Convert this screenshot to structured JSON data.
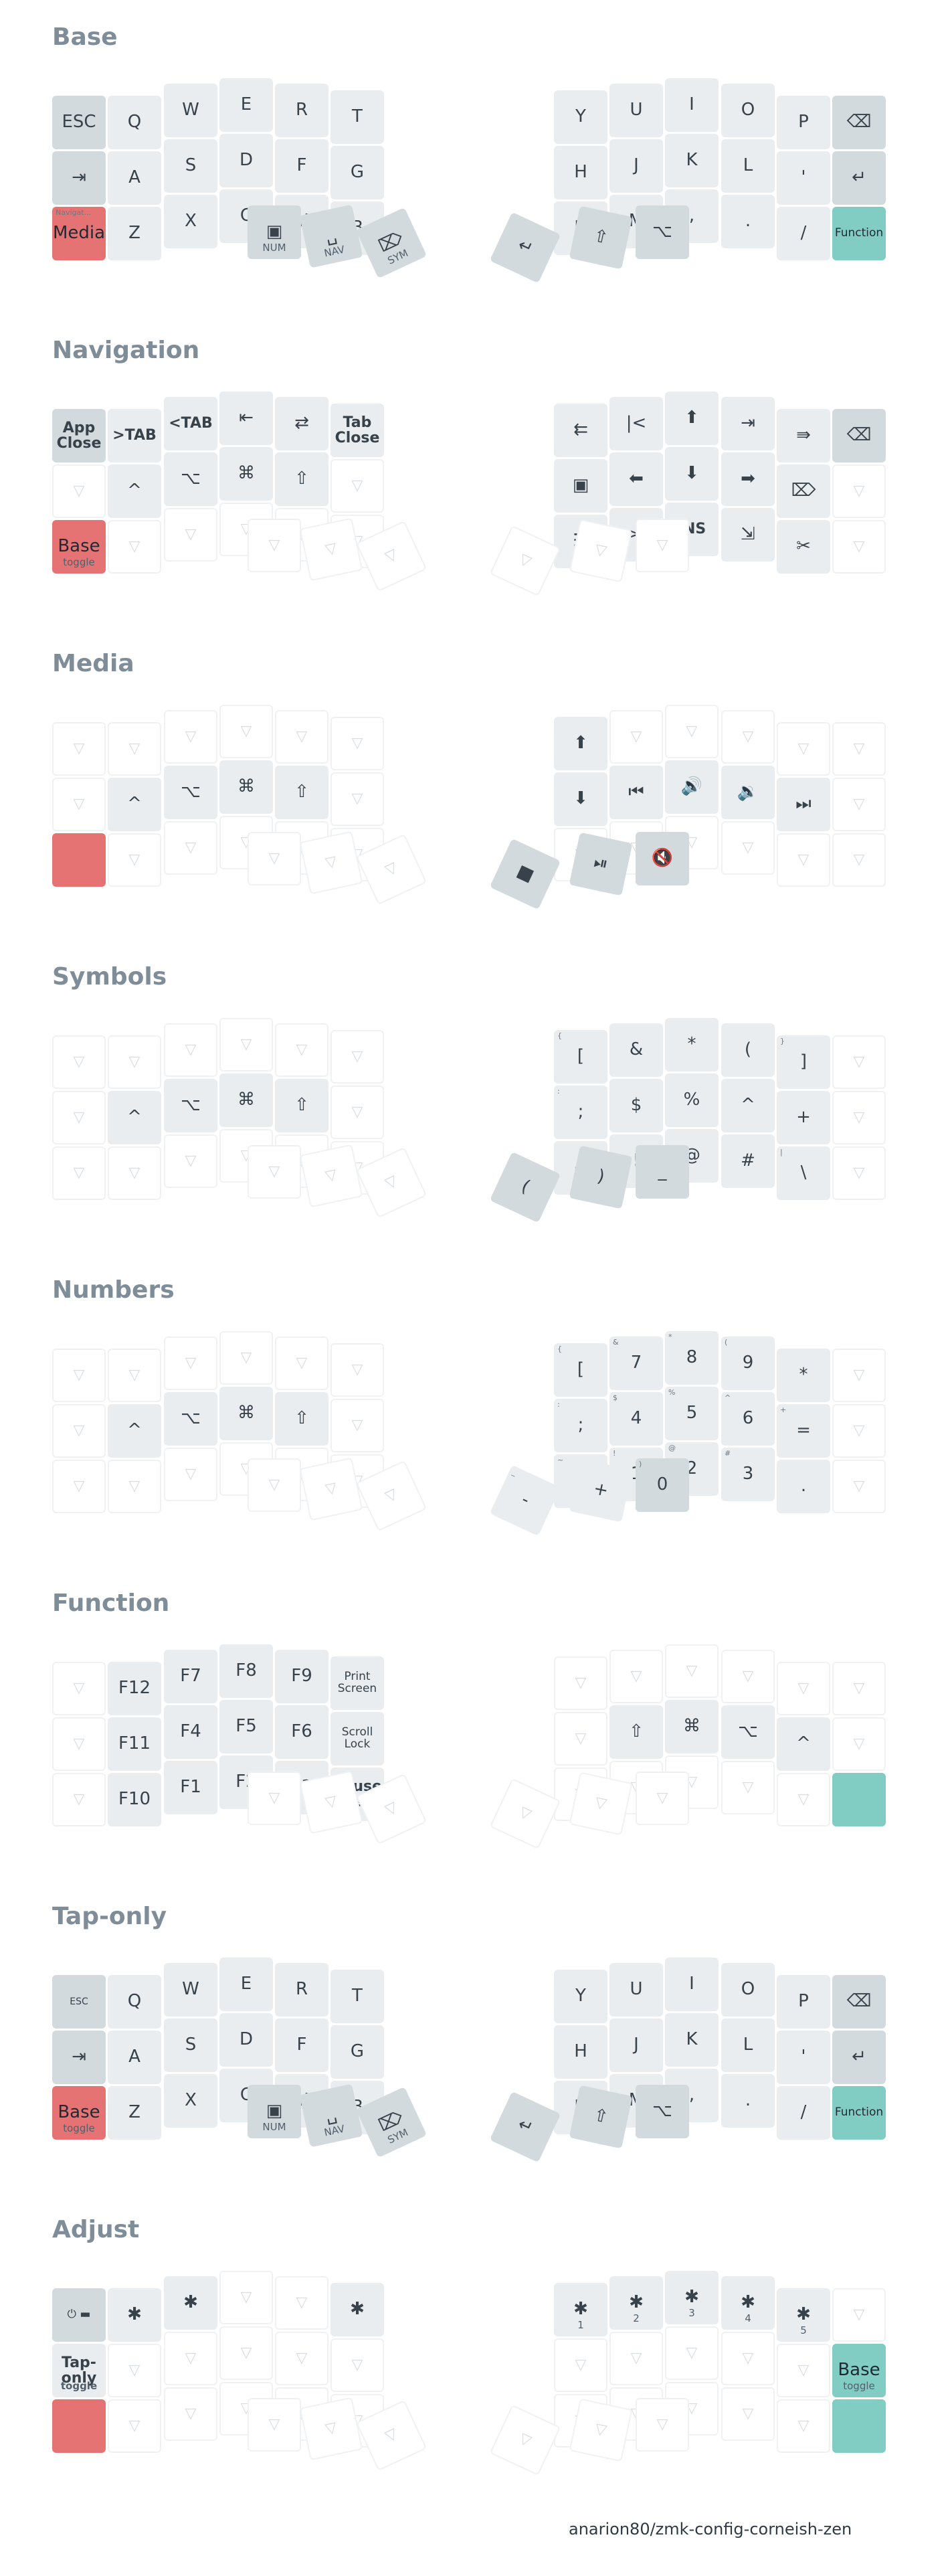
{
  "layers": [
    {
      "title": "Base",
      "keys": [
        {
          "l": "ESC",
          "t": "dark"
        },
        {
          "l": "Q"
        },
        {
          "l": "W"
        },
        {
          "l": "E"
        },
        {
          "l": "R"
        },
        {
          "l": "T"
        },
        {
          "l": "Y"
        },
        {
          "l": "U"
        },
        {
          "l": "I"
        },
        {
          "l": "O"
        },
        {
          "l": "P"
        },
        {
          "l": "⌫",
          "t": "dark"
        },
        {
          "l": "⇥",
          "t": "dark"
        },
        {
          "l": "A"
        },
        {
          "l": "S"
        },
        {
          "l": "D"
        },
        {
          "l": "F"
        },
        {
          "l": "G"
        },
        {
          "l": "H"
        },
        {
          "l": "J"
        },
        {
          "l": "K"
        },
        {
          "l": "L"
        },
        {
          "l": "'"
        },
        {
          "l": "↵",
          "t": "dark"
        },
        {
          "l": "Media",
          "t": "red",
          "h": "Navigat..."
        },
        {
          "l": "Z"
        },
        {
          "l": "X"
        },
        {
          "l": "C"
        },
        {
          "l": "V"
        },
        {
          "l": "B"
        },
        {
          "l": "N"
        },
        {
          "l": "M"
        },
        {
          "l": ","
        },
        {
          "l": "."
        },
        {
          "l": "/"
        },
        {
          "l": "Function",
          "t": "teal",
          "s": "small"
        },
        {
          "l": "▣",
          "t": "dark",
          "sub": "NUM"
        },
        {
          "l": "␣",
          "t": "dark",
          "sub": "NAV"
        },
        {
          "l": "⌦",
          "t": "dark",
          "sub": "SYM"
        },
        {
          "l": "↵",
          "t": "dark"
        },
        {
          "l": "⇧",
          "t": "dark"
        },
        {
          "l": "⌥",
          "t": "dark"
        }
      ]
    },
    {
      "title": "Navigation",
      "keys": [
        {
          "l": "App\nClose",
          "t": "dark",
          "s": "word"
        },
        {
          "l": ">TAB",
          "s": "word"
        },
        {
          "l": "<TAB",
          "s": "word"
        },
        {
          "l": "⇤"
        },
        {
          "l": "⇄"
        },
        {
          "l": "Tab\nClose",
          "s": "word"
        },
        {
          "l": "⇇"
        },
        {
          "l": "|<"
        },
        {
          "l": "⬆"
        },
        {
          "l": "⇥"
        },
        {
          "l": "⇛"
        },
        {
          "l": "⌫",
          "t": "dark"
        },
        {
          "l": "",
          "t": "trans"
        },
        {
          "l": "^"
        },
        {
          "l": "⌥"
        },
        {
          "l": "⌘"
        },
        {
          "l": "⇧"
        },
        {
          "l": "",
          "t": "trans"
        },
        {
          "l": "▣"
        },
        {
          "l": "⬅"
        },
        {
          "l": "⬇"
        },
        {
          "l": "➡"
        },
        {
          "l": "⌦"
        },
        {
          "l": "",
          "t": "trans"
        },
        {
          "l": "Base",
          "t": "red",
          "sub": "toggle"
        },
        {
          "l": "",
          "t": "trans"
        },
        {
          "l": "",
          "t": "trans"
        },
        {
          "l": "",
          "t": "trans"
        },
        {
          "l": "",
          "t": "trans"
        },
        {
          "l": "",
          "t": "trans"
        },
        {
          "l": "☰"
        },
        {
          "l": ">|"
        },
        {
          "l": "INS",
          "s": "word"
        },
        {
          "l": "⇲"
        },
        {
          "l": "✂"
        },
        {
          "l": "",
          "t": "trans"
        },
        {
          "l": "",
          "t": "trans"
        },
        {
          "l": "",
          "t": "trans"
        },
        {
          "l": "",
          "t": "trans"
        },
        {
          "l": "",
          "t": "trans"
        },
        {
          "l": "",
          "t": "trans"
        },
        {
          "l": "",
          "t": "trans"
        }
      ]
    },
    {
      "title": "Media",
      "keys": [
        {
          "l": "",
          "t": "trans"
        },
        {
          "l": "",
          "t": "trans"
        },
        {
          "l": "",
          "t": "trans"
        },
        {
          "l": "",
          "t": "trans"
        },
        {
          "l": "",
          "t": "trans"
        },
        {
          "l": "",
          "t": "trans"
        },
        {
          "l": "⬆"
        },
        {
          "l": "",
          "t": "trans"
        },
        {
          "l": "",
          "t": "trans"
        },
        {
          "l": "",
          "t": "trans"
        },
        {
          "l": "",
          "t": "trans"
        },
        {
          "l": "",
          "t": "trans"
        },
        {
          "l": "",
          "t": "trans"
        },
        {
          "l": "^"
        },
        {
          "l": "⌥"
        },
        {
          "l": "⌘"
        },
        {
          "l": "⇧"
        },
        {
          "l": "",
          "t": "trans"
        },
        {
          "l": "⬇"
        },
        {
          "l": "⏮"
        },
        {
          "l": "🔊"
        },
        {
          "l": "🔉"
        },
        {
          "l": "⏭"
        },
        {
          "l": "",
          "t": "trans"
        },
        {
          "l": "",
          "t": "red"
        },
        {
          "l": "",
          "t": "trans"
        },
        {
          "l": "",
          "t": "trans"
        },
        {
          "l": "",
          "t": "trans"
        },
        {
          "l": "",
          "t": "trans"
        },
        {
          "l": "",
          "t": "trans"
        },
        {
          "l": "",
          "t": "trans"
        },
        {
          "l": "",
          "t": "trans"
        },
        {
          "l": "",
          "t": "trans"
        },
        {
          "l": "",
          "t": "trans"
        },
        {
          "l": "",
          "t": "trans"
        },
        {
          "l": "",
          "t": "trans"
        },
        {
          "l": "",
          "t": "trans"
        },
        {
          "l": "",
          "t": "trans"
        },
        {
          "l": "",
          "t": "trans"
        },
        {
          "l": "■",
          "t": "dark"
        },
        {
          "l": "⏯",
          "t": "dark"
        },
        {
          "l": "🔇",
          "t": "dark"
        }
      ]
    },
    {
      "title": "Symbols",
      "keys": [
        {
          "l": "",
          "t": "trans"
        },
        {
          "l": "",
          "t": "trans"
        },
        {
          "l": "",
          "t": "trans"
        },
        {
          "l": "",
          "t": "trans"
        },
        {
          "l": "",
          "t": "trans"
        },
        {
          "l": "",
          "t": "trans"
        },
        {
          "l": "[",
          "h": "{"
        },
        {
          "l": "&"
        },
        {
          "l": "*"
        },
        {
          "l": "("
        },
        {
          "l": "]",
          "h": "}"
        },
        {
          "l": "",
          "t": "trans"
        },
        {
          "l": "",
          "t": "trans"
        },
        {
          "l": "^"
        },
        {
          "l": "⌥"
        },
        {
          "l": "⌘"
        },
        {
          "l": "⇧"
        },
        {
          "l": "",
          "t": "trans"
        },
        {
          "l": ";",
          "h": ":"
        },
        {
          "l": "$"
        },
        {
          "l": "%"
        },
        {
          "l": "^"
        },
        {
          "l": "+"
        },
        {
          "l": "",
          "t": "trans"
        },
        {
          "l": "",
          "t": "trans"
        },
        {
          "l": "",
          "t": "trans"
        },
        {
          "l": "",
          "t": "trans"
        },
        {
          "l": "",
          "t": "trans"
        },
        {
          "l": "",
          "t": "trans"
        },
        {
          "l": "",
          "t": "trans"
        },
        {
          "l": "~"
        },
        {
          "l": "!"
        },
        {
          "l": "@"
        },
        {
          "l": "#"
        },
        {
          "l": "\\",
          "h": "|"
        },
        {
          "l": "",
          "t": "trans"
        },
        {
          "l": "",
          "t": "trans"
        },
        {
          "l": "",
          "t": "trans"
        },
        {
          "l": "",
          "t": "trans"
        },
        {
          "l": "(",
          "t": "dark"
        },
        {
          "l": ")",
          "t": "dark"
        },
        {
          "l": "_",
          "t": "dark"
        }
      ]
    },
    {
      "title": "Numbers",
      "keys": [
        {
          "l": "",
          "t": "trans"
        },
        {
          "l": "",
          "t": "trans"
        },
        {
          "l": "",
          "t": "trans"
        },
        {
          "l": "",
          "t": "trans"
        },
        {
          "l": "",
          "t": "trans"
        },
        {
          "l": "",
          "t": "trans"
        },
        {
          "l": "[",
          "h": "{"
        },
        {
          "l": "7",
          "h": "&"
        },
        {
          "l": "8",
          "h": "*"
        },
        {
          "l": "9",
          "h": "("
        },
        {
          "l": "*"
        },
        {
          "l": "",
          "t": "trans"
        },
        {
          "l": "",
          "t": "trans"
        },
        {
          "l": "^"
        },
        {
          "l": "⌥"
        },
        {
          "l": "⌘"
        },
        {
          "l": "⇧"
        },
        {
          "l": "",
          "t": "trans"
        },
        {
          "l": ";",
          "h": ":"
        },
        {
          "l": "4",
          "h": "$"
        },
        {
          "l": "5",
          "h": "%"
        },
        {
          "l": "6",
          "h": "^"
        },
        {
          "l": "=",
          "h": "+"
        },
        {
          "l": "",
          "t": "trans"
        },
        {
          "l": "",
          "t": "trans"
        },
        {
          "l": "",
          "t": "trans"
        },
        {
          "l": "",
          "t": "trans"
        },
        {
          "l": "",
          "t": "trans"
        },
        {
          "l": "",
          "t": "trans"
        },
        {
          "l": "",
          "t": "trans"
        },
        {
          "l": "`",
          "h": "~"
        },
        {
          "l": "1",
          "h": "!"
        },
        {
          "l": "2",
          "h": "@"
        },
        {
          "l": "3",
          "h": "#"
        },
        {
          "l": "."
        },
        {
          "l": "",
          "t": "trans"
        },
        {
          "l": "",
          "t": "trans"
        },
        {
          "l": "",
          "t": "trans"
        },
        {
          "l": "",
          "t": "trans"
        },
        {
          "l": "-",
          "h": "_"
        },
        {
          "l": "+"
        },
        {
          "l": "0",
          "t": "dark",
          "h": ")"
        }
      ]
    },
    {
      "title": "Function",
      "keys": [
        {
          "l": "",
          "t": "trans"
        },
        {
          "l": "F12"
        },
        {
          "l": "F7"
        },
        {
          "l": "F8"
        },
        {
          "l": "F9"
        },
        {
          "l": "Print\nScreen",
          "s": "small"
        },
        {
          "l": "",
          "t": "trans"
        },
        {
          "l": "",
          "t": "trans"
        },
        {
          "l": "",
          "t": "trans"
        },
        {
          "l": "",
          "t": "trans"
        },
        {
          "l": "",
          "t": "trans"
        },
        {
          "l": "",
          "t": "trans"
        },
        {
          "l": "",
          "t": "trans"
        },
        {
          "l": "F11"
        },
        {
          "l": "F4"
        },
        {
          "l": "F5"
        },
        {
          "l": "F6"
        },
        {
          "l": "Scroll\nLock",
          "s": "small"
        },
        {
          "l": "",
          "t": "trans"
        },
        {
          "l": "⇧"
        },
        {
          "l": "⌘"
        },
        {
          "l": "⌥"
        },
        {
          "l": "^"
        },
        {
          "l": "",
          "t": "trans"
        },
        {
          "l": "",
          "t": "trans"
        },
        {
          "l": "F10"
        },
        {
          "l": "F1"
        },
        {
          "l": "F2"
        },
        {
          "l": "F3"
        },
        {
          "l": "Pause\nBreak",
          "s": "word"
        },
        {
          "l": "",
          "t": "trans"
        },
        {
          "l": "",
          "t": "trans"
        },
        {
          "l": "",
          "t": "trans"
        },
        {
          "l": "",
          "t": "trans"
        },
        {
          "l": "",
          "t": "trans"
        },
        {
          "l": "",
          "t": "teal"
        },
        {
          "l": "",
          "t": "trans"
        },
        {
          "l": "",
          "t": "trans"
        },
        {
          "l": "",
          "t": "trans"
        },
        {
          "l": "",
          "t": "trans"
        },
        {
          "l": "",
          "t": "trans"
        },
        {
          "l": "",
          "t": "trans"
        }
      ]
    },
    {
      "title": "Tap-only",
      "keys": [
        {
          "l": "ESC",
          "t": "dark",
          "s": "tiny"
        },
        {
          "l": "Q"
        },
        {
          "l": "W"
        },
        {
          "l": "E"
        },
        {
          "l": "R"
        },
        {
          "l": "T"
        },
        {
          "l": "Y"
        },
        {
          "l": "U"
        },
        {
          "l": "I"
        },
        {
          "l": "O"
        },
        {
          "l": "P"
        },
        {
          "l": "⌫",
          "t": "dark"
        },
        {
          "l": "⇥",
          "t": "dark"
        },
        {
          "l": "A"
        },
        {
          "l": "S"
        },
        {
          "l": "D"
        },
        {
          "l": "F"
        },
        {
          "l": "G"
        },
        {
          "l": "H"
        },
        {
          "l": "J"
        },
        {
          "l": "K"
        },
        {
          "l": "L"
        },
        {
          "l": "'"
        },
        {
          "l": "↵",
          "t": "dark"
        },
        {
          "l": "Base",
          "t": "red",
          "sub": "toggle"
        },
        {
          "l": "Z"
        },
        {
          "l": "X"
        },
        {
          "l": "C"
        },
        {
          "l": "V"
        },
        {
          "l": "B"
        },
        {
          "l": "N"
        },
        {
          "l": "M"
        },
        {
          "l": ","
        },
        {
          "l": "."
        },
        {
          "l": "/"
        },
        {
          "l": "Function",
          "t": "teal",
          "s": "small"
        },
        {
          "l": "▣",
          "t": "dark",
          "sub": "NUM"
        },
        {
          "l": "␣",
          "t": "dark",
          "sub": "NAV"
        },
        {
          "l": "⌦",
          "t": "dark",
          "sub": "SYM"
        },
        {
          "l": "↵",
          "t": "dark"
        },
        {
          "l": "⇧",
          "t": "dark"
        },
        {
          "l": "⌥",
          "t": "dark"
        }
      ]
    },
    {
      "title": "Adjust",
      "keys": [
        {
          "l": "⏻ ▬",
          "t": "dark",
          "s": "small"
        },
        {
          "l": "✱"
        },
        {
          "l": "✱"
        },
        {
          "l": "",
          "t": "trans"
        },
        {
          "l": "",
          "t": "trans"
        },
        {
          "l": "✱"
        },
        {
          "l": "✱",
          "sub": "1"
        },
        {
          "l": "✱",
          "sub": "2"
        },
        {
          "l": "✱",
          "sub": "3"
        },
        {
          "l": "✱",
          "sub": "4"
        },
        {
          "l": "✱",
          "sub": "5"
        },
        {
          "l": "",
          "t": "trans"
        },
        {
          "l": "Tap-\nonly",
          "s": "word",
          "sub": "toggle"
        },
        {
          "l": "",
          "t": "trans"
        },
        {
          "l": "",
          "t": "trans"
        },
        {
          "l": "",
          "t": "trans"
        },
        {
          "l": "",
          "t": "trans"
        },
        {
          "l": "",
          "t": "trans"
        },
        {
          "l": "",
          "t": "trans"
        },
        {
          "l": "",
          "t": "trans"
        },
        {
          "l": "",
          "t": "trans"
        },
        {
          "l": "",
          "t": "trans"
        },
        {
          "l": "",
          "t": "trans"
        },
        {
          "l": "Base",
          "t": "teal",
          "sub": "toggle"
        },
        {
          "l": "",
          "t": "red"
        },
        {
          "l": "",
          "t": "trans"
        },
        {
          "l": "",
          "t": "trans"
        },
        {
          "l": "",
          "t": "trans"
        },
        {
          "l": "",
          "t": "trans"
        },
        {
          "l": "",
          "t": "trans"
        },
        {
          "l": "",
          "t": "trans"
        },
        {
          "l": "",
          "t": "trans"
        },
        {
          "l": "",
          "t": "trans"
        },
        {
          "l": "",
          "t": "trans"
        },
        {
          "l": "",
          "t": "trans"
        },
        {
          "l": "",
          "t": "teal"
        },
        {
          "l": "",
          "t": "trans"
        },
        {
          "l": "",
          "t": "trans"
        },
        {
          "l": "",
          "t": "trans"
        },
        {
          "l": "",
          "t": "trans"
        },
        {
          "l": "",
          "t": "trans"
        },
        {
          "l": "",
          "t": "trans"
        }
      ]
    }
  ],
  "footer": "anarion80/zmk-config-corneish-zen"
}
